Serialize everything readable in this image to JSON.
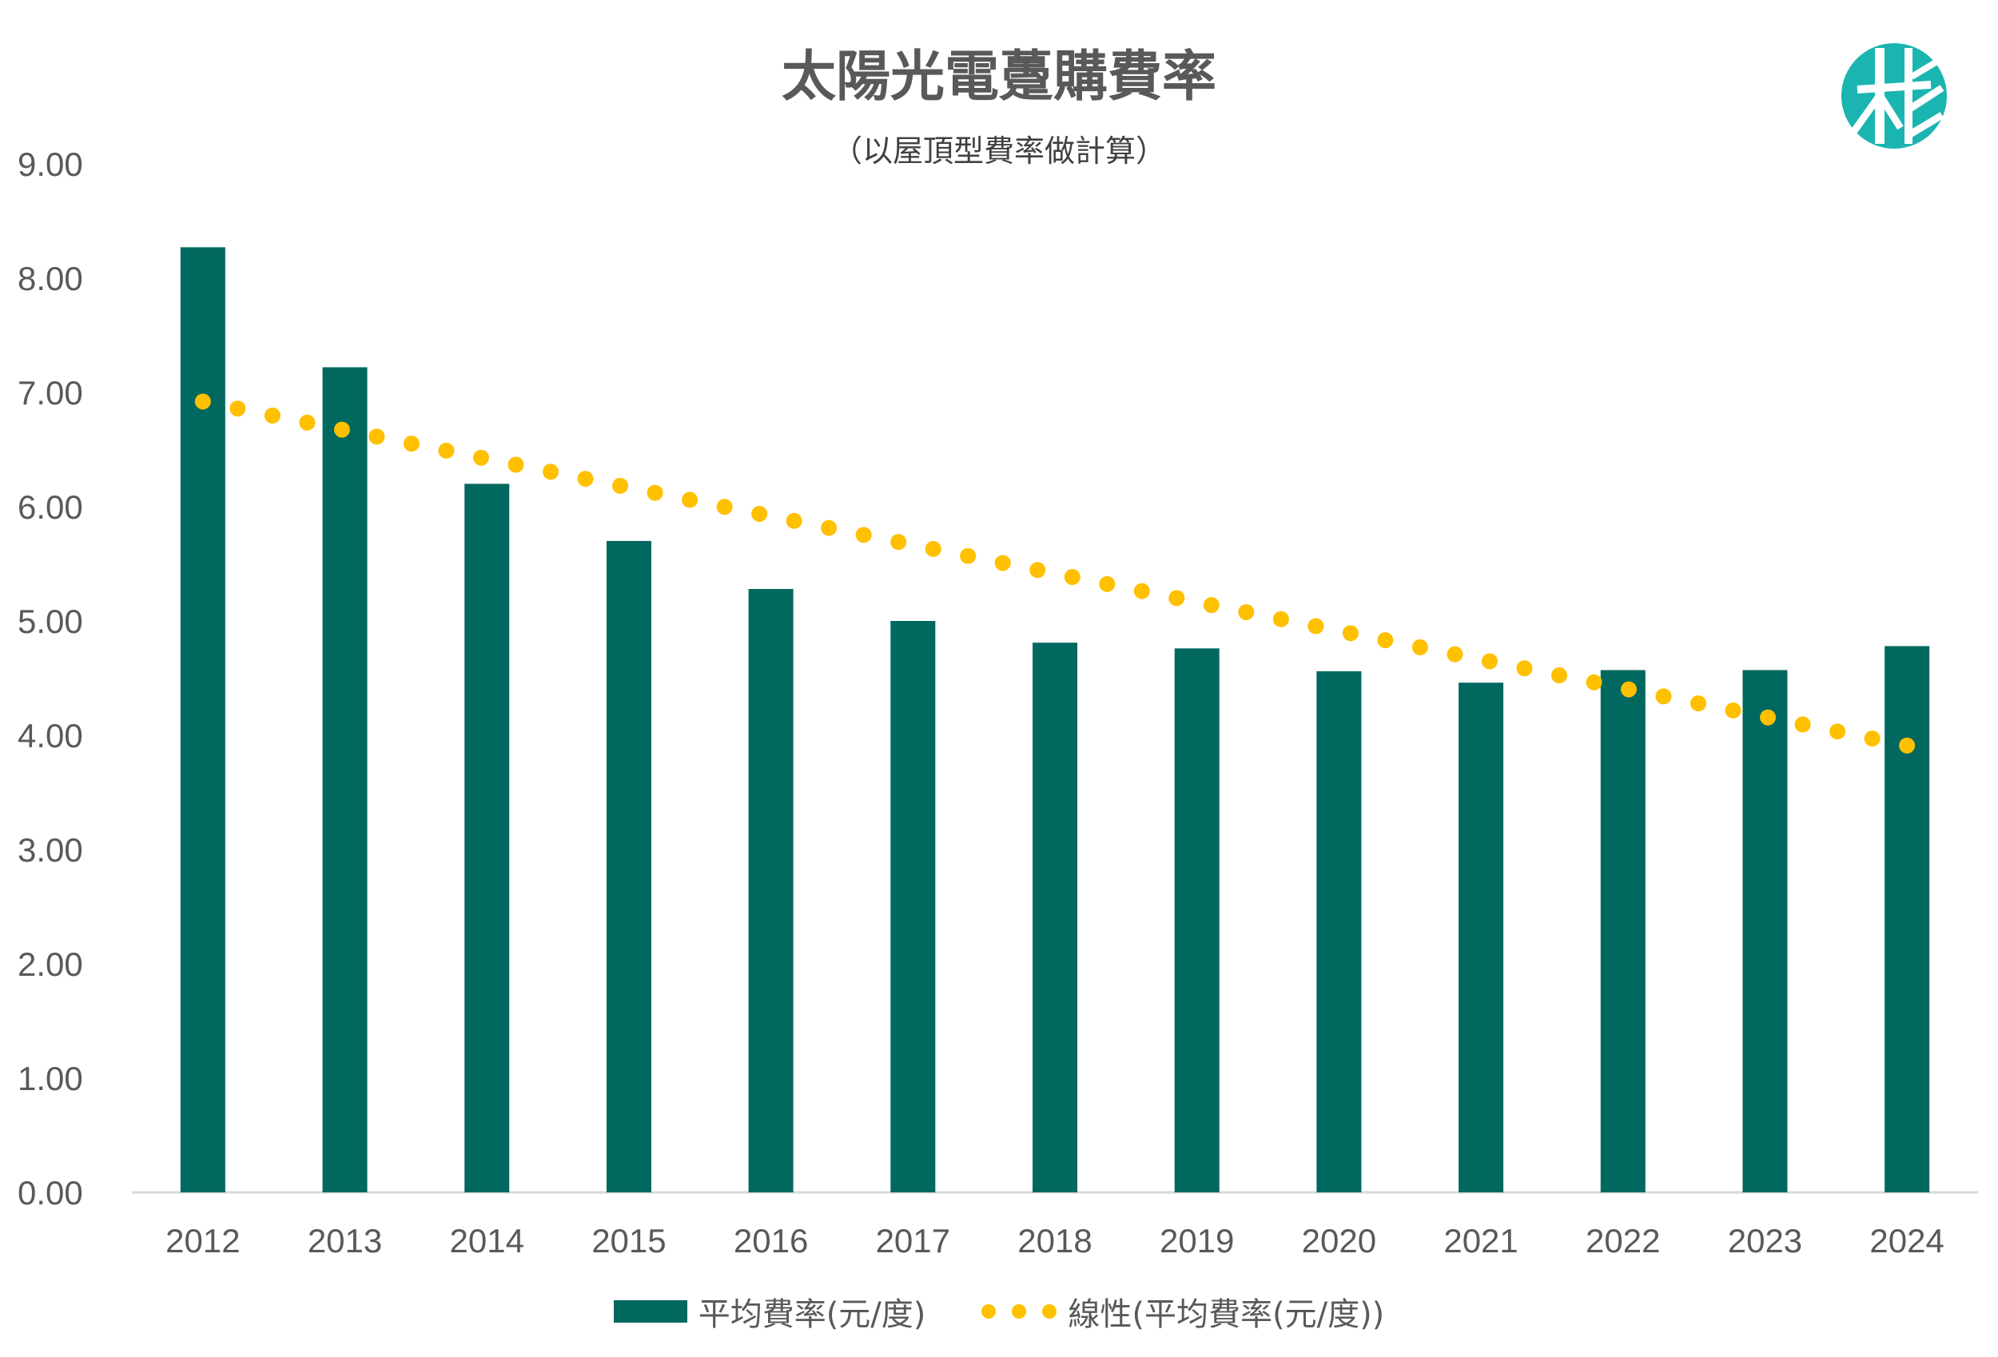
{
  "chart_data": {
    "type": "bar",
    "title": "太陽光電躉購費率",
    "subtitle": "（以屋頂型費率做計算）",
    "categories": [
      "2012",
      "2013",
      "2014",
      "2015",
      "2016",
      "2017",
      "2018",
      "2019",
      "2020",
      "2021",
      "2022",
      "2023",
      "2024"
    ],
    "series": [
      {
        "name": "平均費率(元/度)",
        "type": "bar",
        "color": "#00685f",
        "values": [
          8.27,
          7.22,
          6.2,
          5.7,
          5.28,
          5.0,
          4.81,
          4.76,
          4.56,
          4.46,
          4.57,
          4.57,
          4.78
        ]
      },
      {
        "name": "線性(平均費率(元/度))",
        "type": "trendline-dotted",
        "color": "#ffc000",
        "values": [
          6.92,
          6.67,
          6.42,
          6.17,
          5.92,
          5.67,
          5.42,
          5.16,
          4.91,
          4.66,
          4.41,
          4.16,
          3.91
        ]
      }
    ],
    "ylim": [
      0,
      9
    ],
    "yticks": [
      "0.00",
      "1.00",
      "2.00",
      "3.00",
      "4.00",
      "5.00",
      "6.00",
      "7.00",
      "8.00",
      "9.00"
    ],
    "grid": false,
    "legend_position": "bottom"
  },
  "logo": {
    "name": "leaf-logo-icon",
    "color": "#1ab5b0"
  }
}
